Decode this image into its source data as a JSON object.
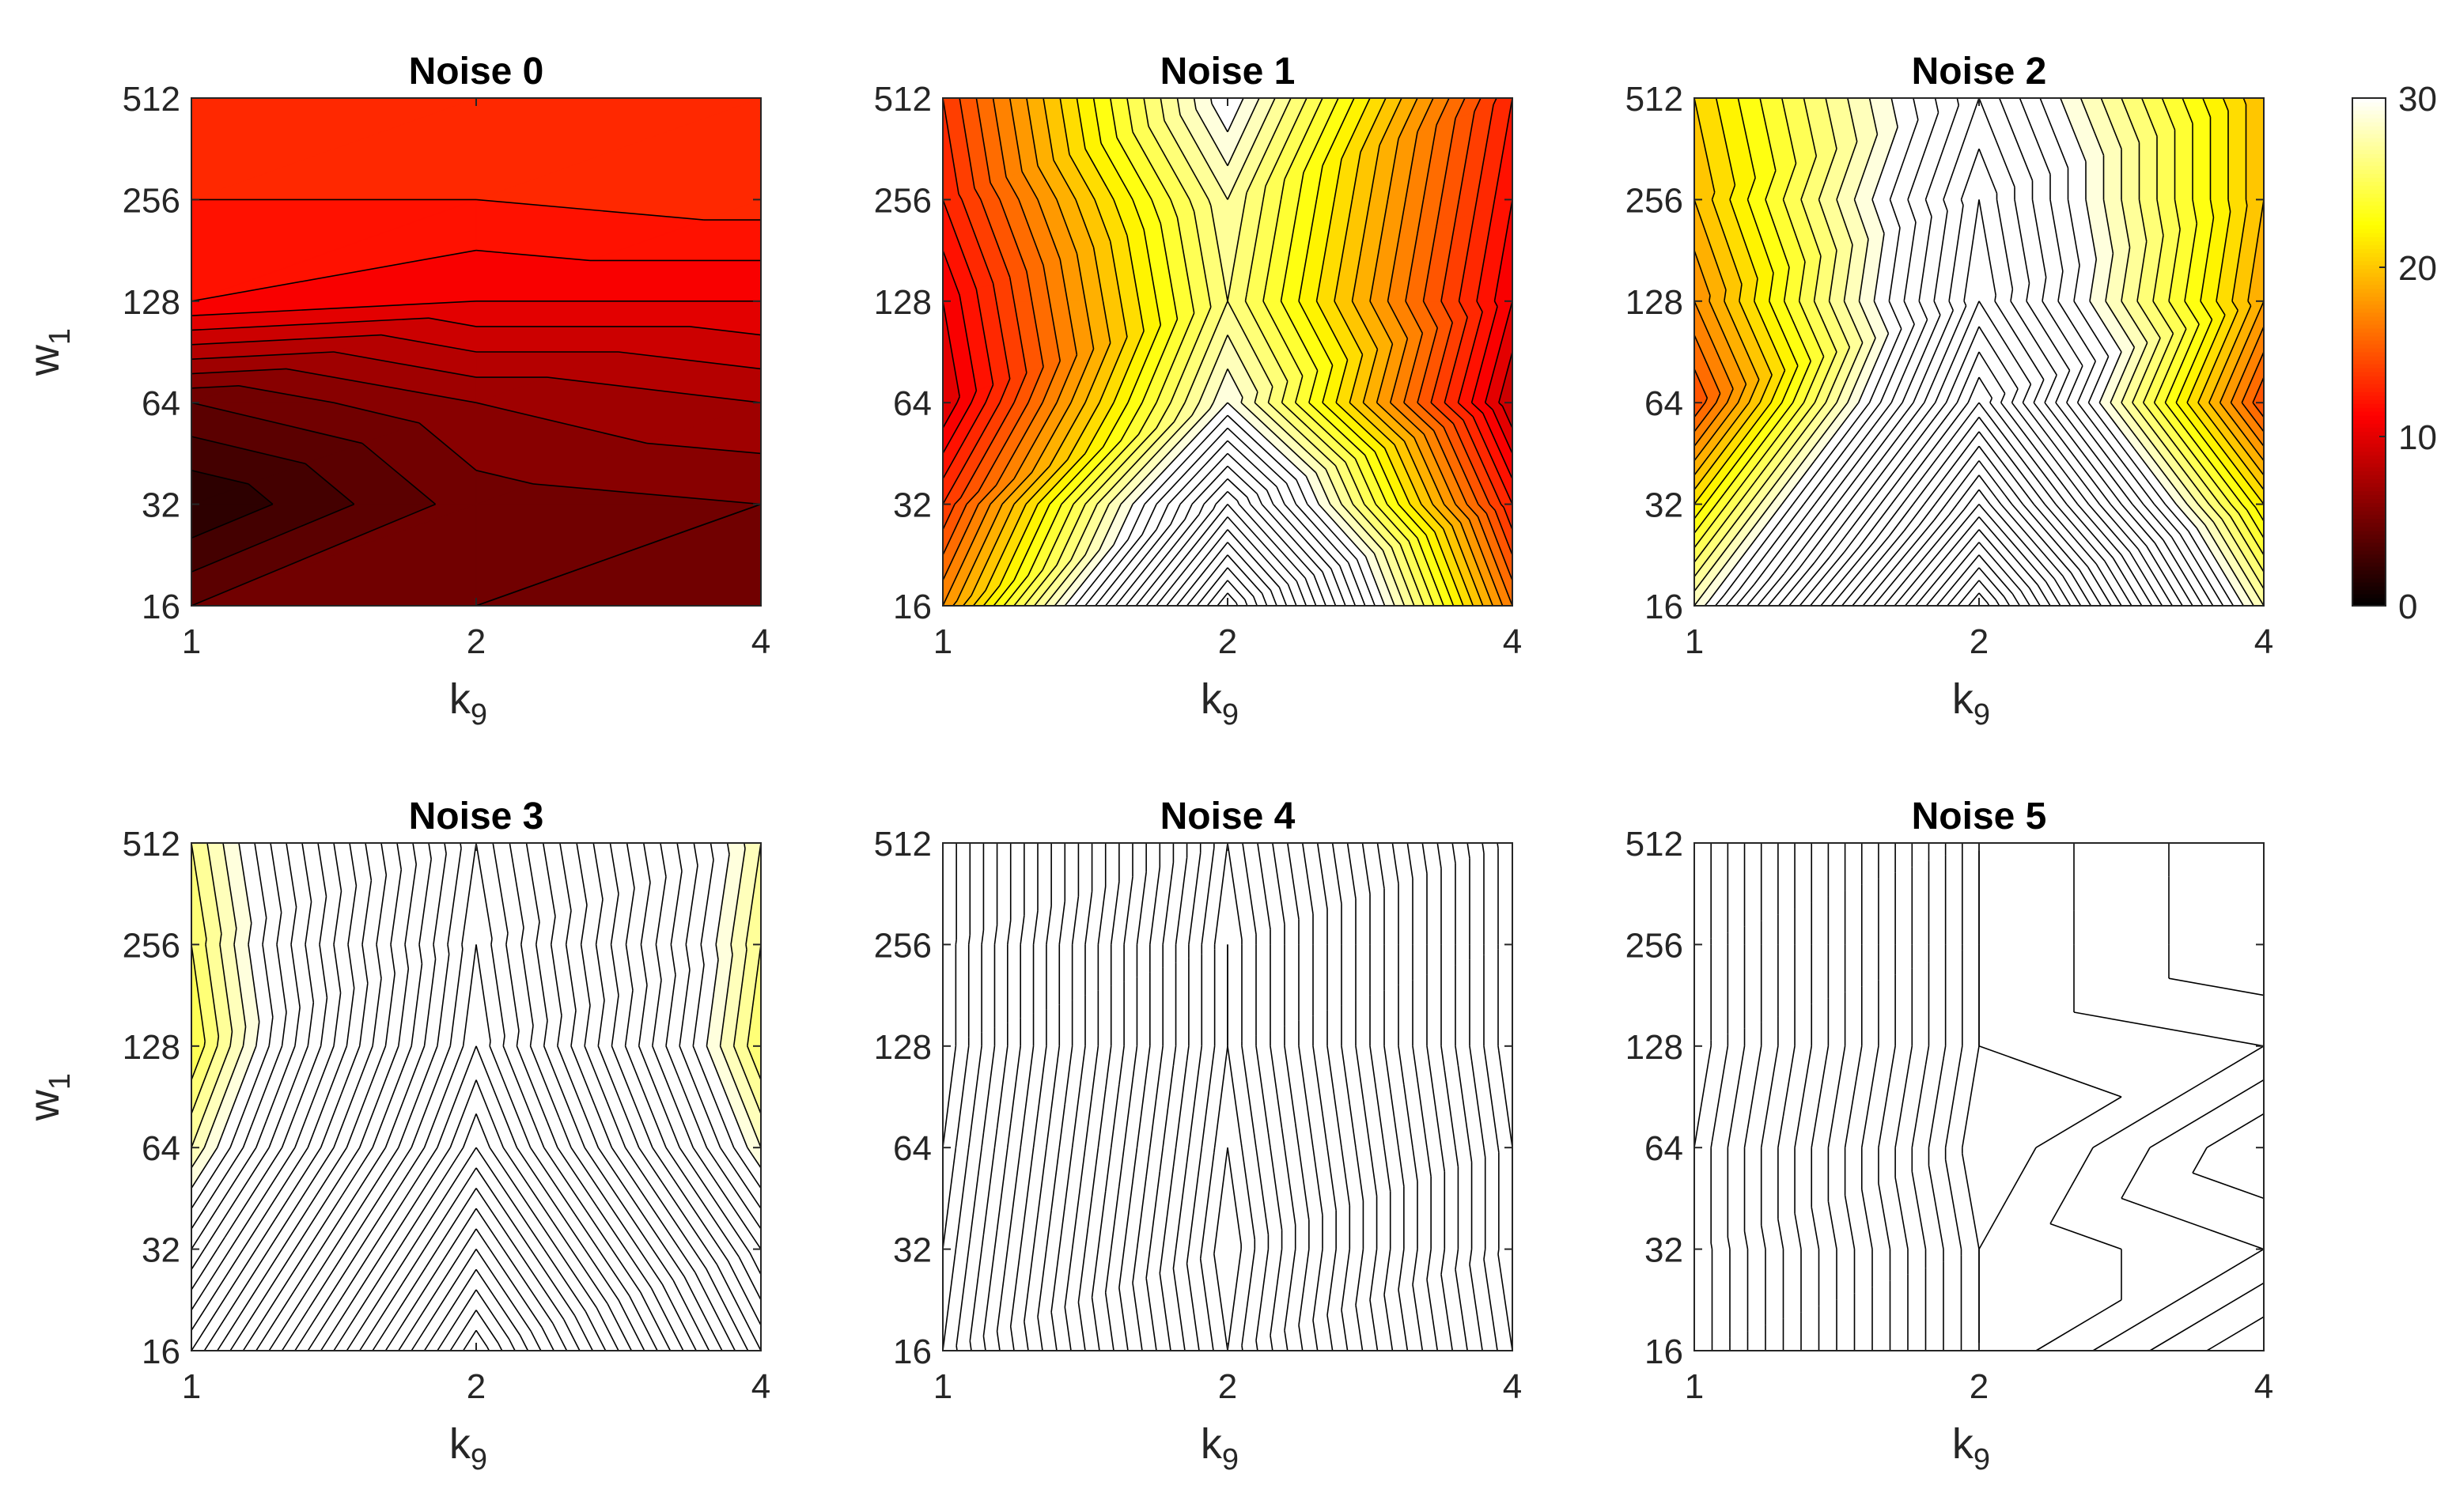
{
  "chart_data": [
    {
      "type": "contour",
      "title": "Noise 0",
      "x": [
        1,
        2,
        4
      ],
      "y": [
        16,
        32,
        64,
        128,
        256,
        512
      ],
      "z": [
        [
          5,
          6,
          5.5
        ],
        [
          2,
          5.5,
          6
        ],
        [
          5,
          7,
          8
        ],
        [
          12,
          11,
          11
        ],
        [
          13,
          13,
          13.5
        ],
        [
          14,
          13.5,
          14
        ]
      ],
      "xlim": [
        1,
        4
      ],
      "ylim": [
        16,
        512
      ],
      "xticks": [
        1,
        2,
        4
      ],
      "yticks": [
        16,
        32,
        64,
        128,
        256,
        512
      ],
      "xscale": "log",
      "yscale": "log",
      "xlabel": {
        "text": "k",
        "subscript": "9"
      },
      "ylabel": {
        "text": "w",
        "subscript": "1"
      }
    },
    {
      "type": "contour",
      "title": "Noise 1",
      "x": [
        1,
        2,
        4
      ],
      "y": [
        16,
        32,
        64,
        128,
        256,
        512
      ],
      "z": [
        [
          18,
          46,
          17
        ],
        [
          14,
          38,
          13
        ],
        [
          10,
          30,
          9
        ],
        [
          11,
          27,
          11
        ],
        [
          13,
          28,
          12
        ],
        [
          14,
          31,
          13
        ]
      ],
      "xlim": [
        1,
        4
      ],
      "ylim": [
        16,
        512
      ],
      "xticks": [
        1,
        2,
        4
      ],
      "yticks": [
        16,
        32,
        64,
        128,
        256,
        512
      ],
      "xscale": "log",
      "yscale": "log",
      "xlabel": {
        "text": "k",
        "subscript": "9"
      }
    },
    {
      "type": "contour",
      "title": "Noise 2",
      "x": [
        1,
        2,
        4
      ],
      "y": [
        16,
        32,
        64,
        128,
        256,
        512
      ],
      "z": [
        [
          29,
          56,
          28
        ],
        [
          22,
          48,
          22
        ],
        [
          15,
          41,
          15
        ],
        [
          18,
          37,
          19
        ],
        [
          20,
          36,
          20
        ],
        [
          21,
          34,
          20
        ]
      ],
      "xlim": [
        1,
        4
      ],
      "ylim": [
        16,
        512
      ],
      "xticks": [
        1,
        2,
        4
      ],
      "yticks": [
        16,
        32,
        64,
        128,
        256,
        512
      ],
      "xscale": "log",
      "yscale": "log",
      "xlabel": {
        "text": "k",
        "subscript": "9"
      }
    },
    {
      "type": "contour",
      "title": "Noise 3",
      "x": [
        1,
        2,
        4
      ],
      "y": [
        16,
        32,
        64,
        128,
        256,
        512
      ],
      "z": [
        [
          38,
          60,
          38
        ],
        [
          33,
          55,
          34
        ],
        [
          28,
          50,
          29
        ],
        [
          25,
          47,
          26
        ],
        [
          26,
          46,
          27
        ],
        [
          27,
          45,
          28
        ]
      ],
      "xlim": [
        1,
        4
      ],
      "ylim": [
        16,
        512
      ],
      "xticks": [
        1,
        2,
        4
      ],
      "yticks": [
        16,
        32,
        64,
        128,
        256,
        512
      ],
      "xscale": "log",
      "yscale": "log",
      "xlabel": {
        "text": "k",
        "subscript": "9"
      },
      "ylabel": {
        "text": "w",
        "subscript": "1"
      }
    },
    {
      "type": "contour",
      "title": "Noise 4",
      "x": [
        1,
        2,
        4
      ],
      "y": [
        16,
        32,
        64,
        128,
        256,
        512
      ],
      "z": [
        [
          34,
          54,
          35
        ],
        [
          33,
          55,
          34
        ],
        [
          32,
          54,
          34
        ],
        [
          31,
          53,
          33
        ],
        [
          31,
          53,
          33
        ],
        [
          31,
          52,
          33
        ]
      ],
      "xlim": [
        1,
        4
      ],
      "ylim": [
        16,
        512
      ],
      "xticks": [
        1,
        2,
        4
      ],
      "yticks": [
        16,
        32,
        64,
        128,
        256,
        512
      ],
      "xscale": "log",
      "yscale": "log",
      "xlabel": {
        "text": "k",
        "subscript": "9"
      }
    },
    {
      "type": "contour",
      "title": "Noise 5",
      "x": [
        1,
        2,
        4
      ],
      "y": [
        16,
        32,
        64,
        128,
        256,
        512
      ],
      "z": [
        [
          32,
          48,
          43
        ],
        [
          32,
          48,
          46
        ],
        [
          32,
          49,
          44
        ],
        [
          31,
          48,
          47
        ],
        [
          31,
          48,
          45
        ],
        [
          31,
          48,
          45
        ]
      ],
      "xlim": [
        1,
        4
      ],
      "ylim": [
        16,
        512
      ],
      "xticks": [
        1,
        2,
        4
      ],
      "yticks": [
        16,
        32,
        64,
        128,
        256,
        512
      ],
      "xscale": "log",
      "yscale": "log",
      "xlabel": {
        "text": "k",
        "subscript": "9"
      }
    }
  ],
  "colorbar": {
    "colormap": "hot",
    "clim": [
      0,
      30
    ],
    "ticks": [
      0,
      10,
      20,
      30
    ]
  }
}
